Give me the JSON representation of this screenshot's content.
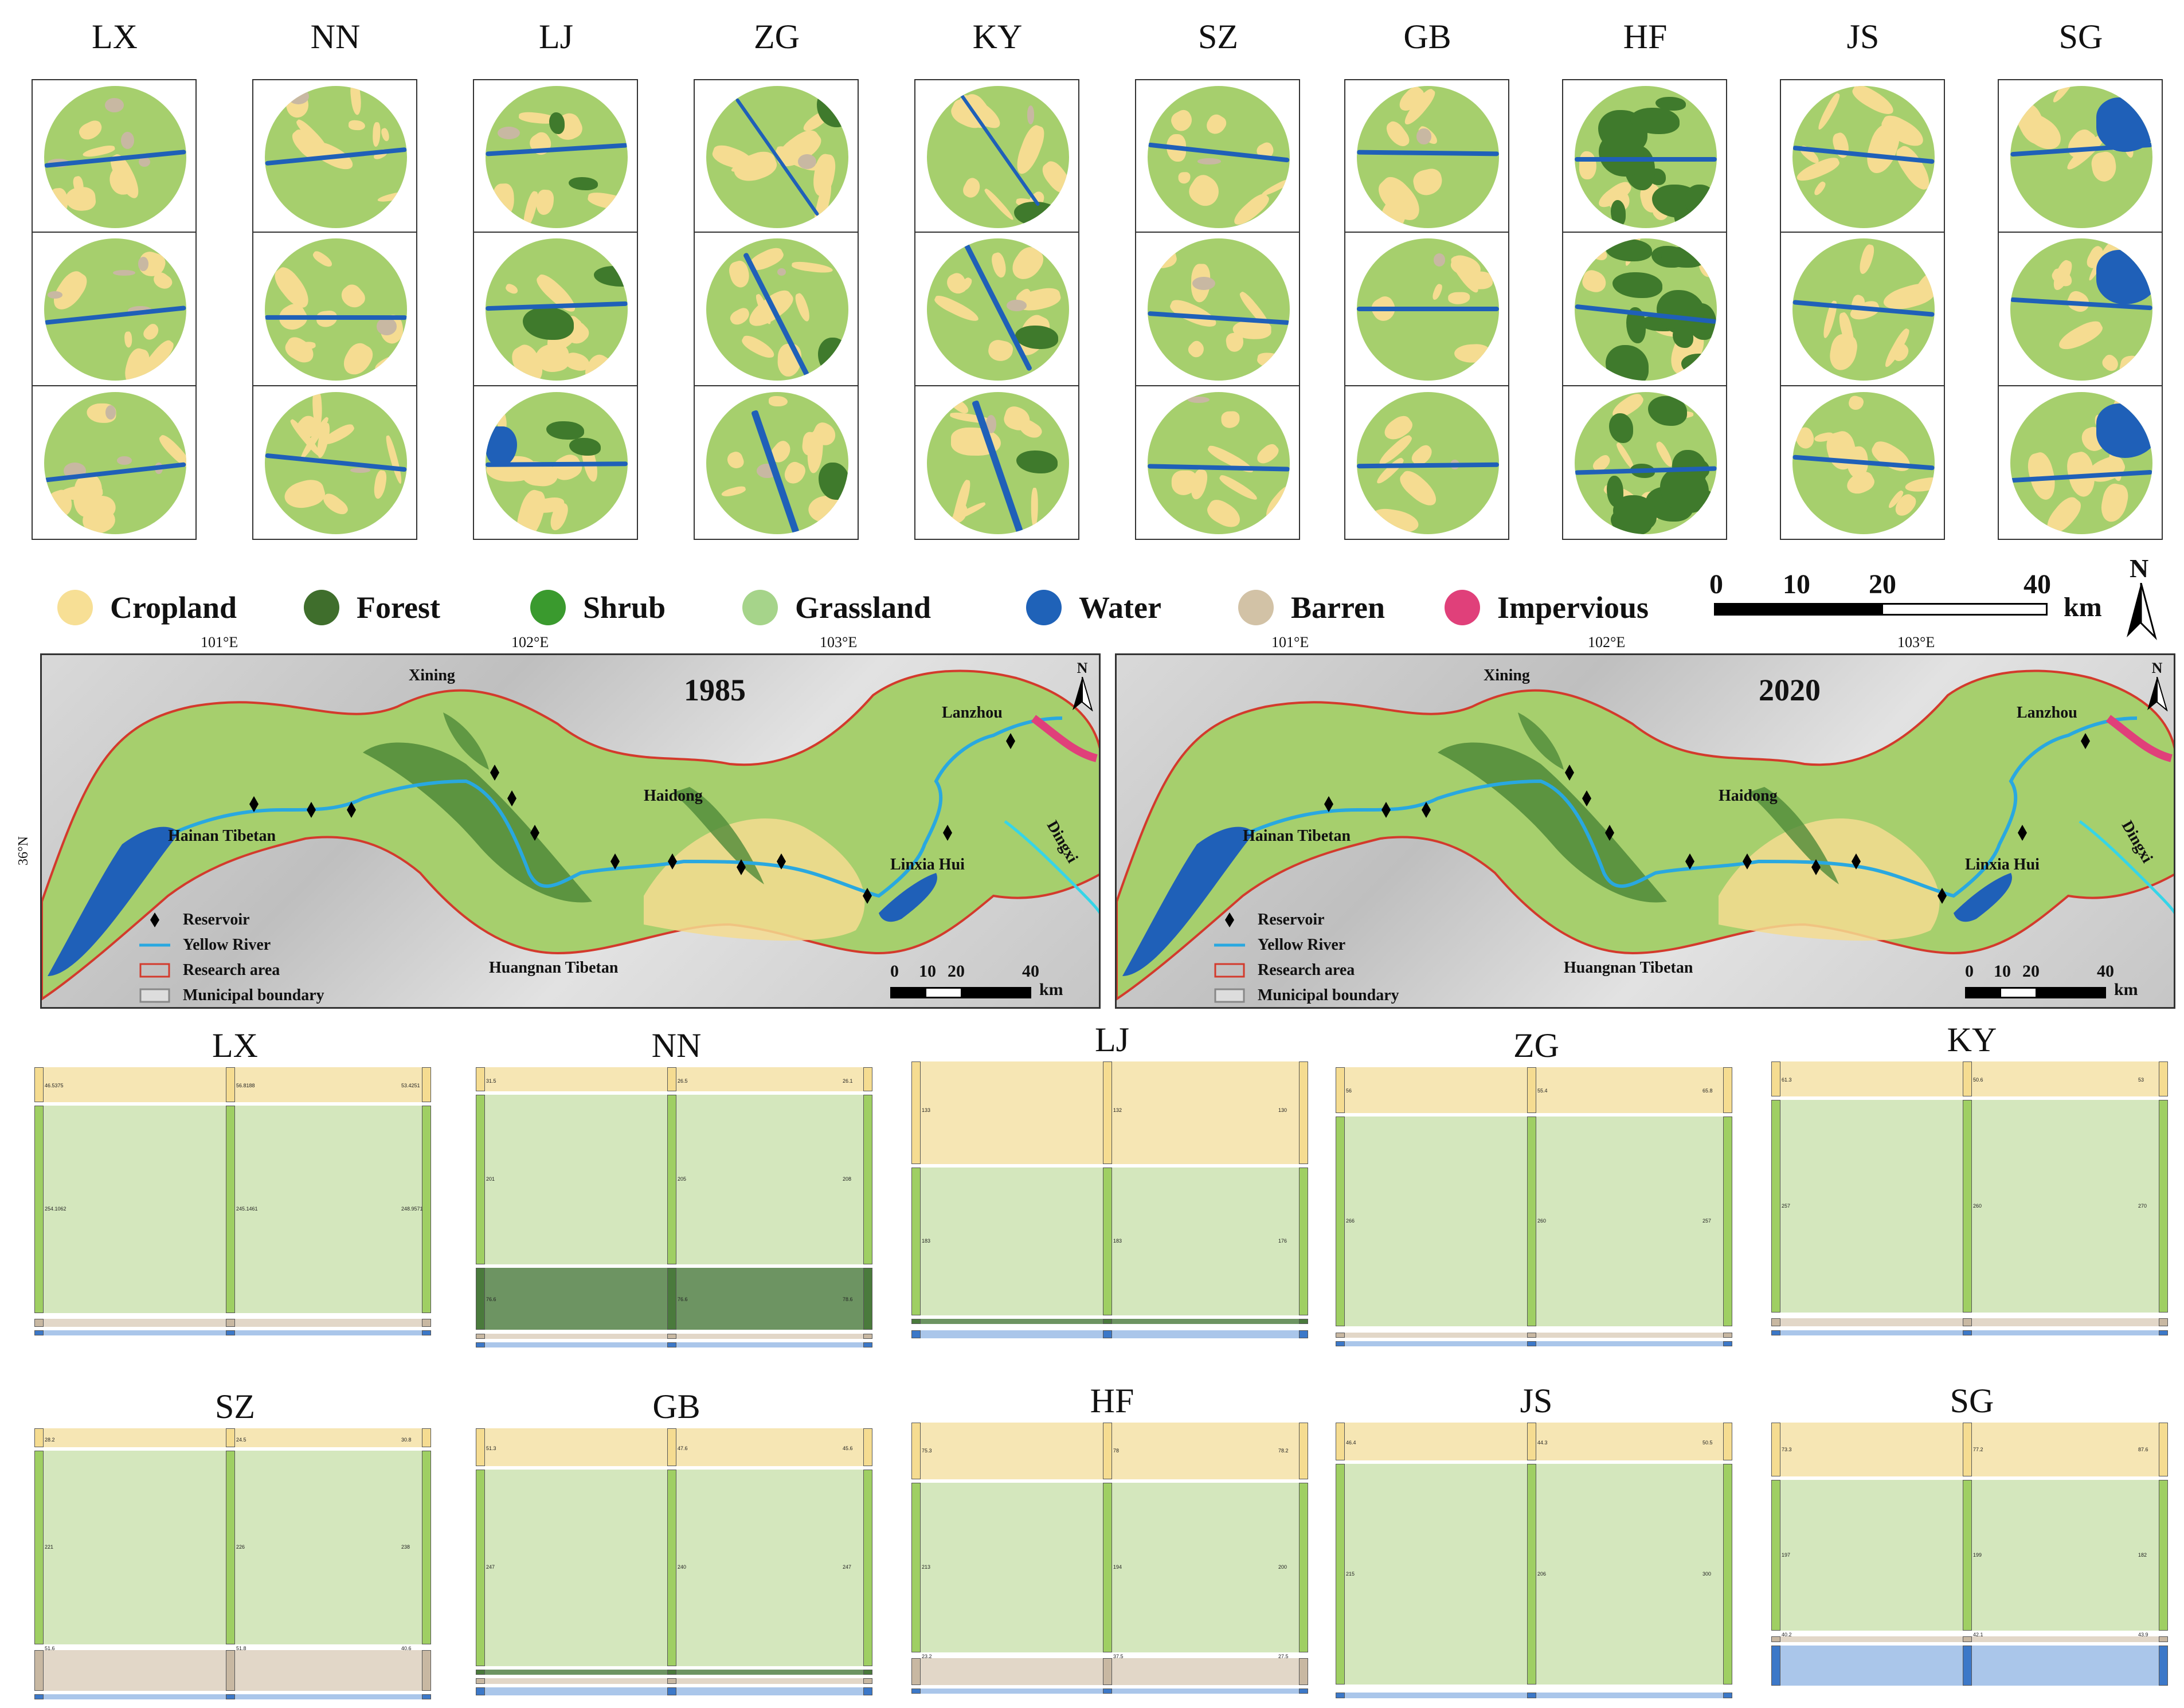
{
  "sites": [
    "LX",
    "NN",
    "LJ",
    "ZG",
    "KY",
    "SZ",
    "GB",
    "HF",
    "JS",
    "SG"
  ],
  "legend": [
    {
      "label": "Cropland",
      "color": "#f5dc91"
    },
    {
      "label": "Forest",
      "color": "#3f6e2c"
    },
    {
      "label": "Shrub",
      "color": "#3a9a2e"
    },
    {
      "label": "Grassland",
      "color": "#a6d48a"
    },
    {
      "label": "Water",
      "color": "#1f62b8"
    },
    {
      "label": "Barren",
      "color": "#d2c2a6"
    },
    {
      "label": "Impervious",
      "color": "#e0407a"
    }
  ],
  "scalebar_top": {
    "ticks": [
      "0",
      "10",
      "20",
      "40"
    ],
    "unit": "km",
    "north": "N"
  },
  "maps": [
    {
      "year": "1985",
      "places": [
        "Xining",
        "Lanzhou",
        "Haidong",
        "Hainan Tibetan",
        "Linxia Hui",
        "Huangnan Tibetan",
        "Dingxi"
      ]
    },
    {
      "year": "2020",
      "places": [
        "Xining",
        "Lanzhou",
        "Haidong",
        "Hainan Tibetan",
        "Linxia Hui",
        "Huangnan Tibetan",
        "Dingxi"
      ]
    }
  ],
  "map_axes": {
    "lon": [
      "101°E",
      "102°E",
      "103°E"
    ],
    "lat": "36°N"
  },
  "map_legend": [
    "Reservoir",
    "Yellow River",
    "Research area",
    "Municipal boundary"
  ],
  "map_scale": {
    "ticks": [
      "0",
      "10",
      "20",
      "40"
    ],
    "unit": "km",
    "north": "N"
  },
  "sankey_titles": [
    "LX",
    "NN",
    "LJ",
    "ZG",
    "KY",
    "SZ",
    "GB",
    "HF",
    "JS",
    "SG"
  ],
  "sankey_labels": {
    "LX": [
      "46.5375",
      "56.8188",
      "53.4251",
      "254.1062",
      "245.1461",
      "248.9571"
    ],
    "NN": [
      "31.5",
      "26.5",
      "26.1",
      "201",
      "205",
      "208",
      "76.6",
      "76.6",
      "78.6"
    ],
    "LJ": [
      "133",
      "132",
      "130",
      "183",
      "183",
      "176"
    ],
    "ZG": [
      "56",
      "55.4",
      "65.8",
      "266",
      "260",
      "257"
    ],
    "KY": [
      "61.3",
      "50.6",
      "53",
      "257",
      "260",
      "270"
    ],
    "SZ": [
      "28.2",
      "24.5",
      "30.8",
      "221",
      "226",
      "238",
      "51.6",
      "51.8",
      "40.6"
    ],
    "GB": [
      "51.3",
      "47.6",
      "45.6",
      "247",
      "240",
      "247"
    ],
    "HF": [
      "75.3",
      "78",
      "78.2",
      "213",
      "194",
      "200",
      "23.2",
      "37.5",
      "27.5"
    ],
    "JS": [
      "46.4",
      "44.3",
      "50.5",
      "215",
      "206",
      "300"
    ],
    "SG": [
      "73.3",
      "77.2",
      "87.6",
      "197",
      "199",
      "182",
      "40.2",
      "42.1",
      "43.9"
    ]
  },
  "colors": {
    "cropland": "#f5dc91",
    "grassland": "#a6cf6d",
    "forest": "#3f7a2c",
    "water": "#1f60b8",
    "barren": "#c8b8a2",
    "impervious": "#e0407a",
    "river": "#29a8e0",
    "boundary": "#d33a2c"
  }
}
